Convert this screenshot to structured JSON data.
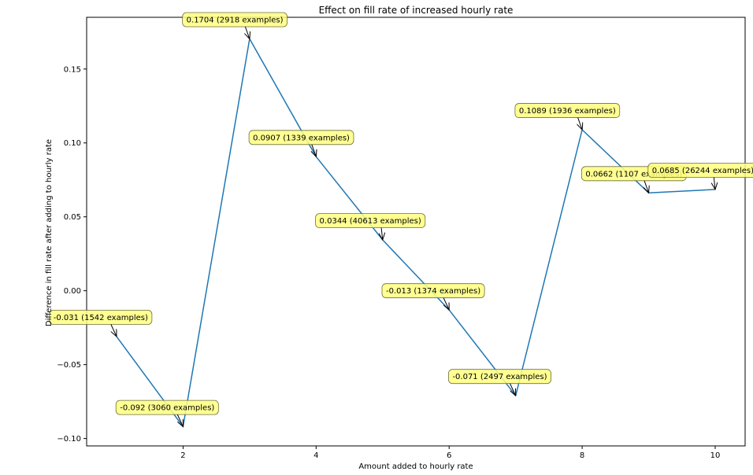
{
  "chart_data": {
    "type": "line",
    "title": "Effect on fill rate of increased hourly rate",
    "xlabel": "Amount added to hourly rate",
    "ylabel": "Difference in fill rate after adding to hourly rate",
    "xlim": [
      0.55,
      10.45
    ],
    "ylim": [
      -0.105,
      0.185
    ],
    "xticks": [
      2,
      4,
      6,
      8,
      10
    ],
    "yticks": [
      -0.1,
      -0.05,
      0.0,
      0.05,
      0.1,
      0.15
    ],
    "ytick_labels": [
      "−0.10",
      "−0.05",
      "0.00",
      "0.05",
      "0.10",
      "0.15"
    ],
    "line_color": "#1f77b4",
    "annotation_face": "#ffff7f",
    "grid": false,
    "x": [
      1,
      2,
      3,
      4,
      5,
      6,
      7,
      8,
      9,
      10
    ],
    "y": [
      -0.031,
      -0.092,
      0.1704,
      0.0907,
      0.0344,
      -0.013,
      -0.071,
      0.1089,
      0.0662,
      0.0685
    ],
    "annotations": [
      {
        "text": "-0.031 (1542 examples)",
        "x": 1,
        "y": -0.031,
        "text_x": 0.05,
        "text_y": -0.018
      },
      {
        "text": "-0.092 (3060 examples)",
        "x": 2,
        "y": -0.092,
        "text_x": 1.05,
        "text_y": -0.079
      },
      {
        "text": "0.1704 (2918 examples)",
        "x": 3,
        "y": 0.1704,
        "text_x": 2.05,
        "text_y": 0.1834
      },
      {
        "text": "0.0907 (1339 examples)",
        "x": 4,
        "y": 0.0907,
        "text_x": 3.05,
        "text_y": 0.1037
      },
      {
        "text": "0.0344 (40613 examples)",
        "x": 5,
        "y": 0.0344,
        "text_x": 4.05,
        "text_y": 0.0474
      },
      {
        "text": "-0.013 (1374 examples)",
        "x": 6,
        "y": -0.013,
        "text_x": 5.05,
        "text_y": 0.0
      },
      {
        "text": "-0.071 (2497 examples)",
        "x": 7,
        "y": -0.071,
        "text_x": 6.05,
        "text_y": -0.058
      },
      {
        "text": "0.1089 (1936 examples)",
        "x": 8,
        "y": 0.1089,
        "text_x": 7.05,
        "text_y": 0.1219
      },
      {
        "text": "0.0662 (1107 examples)",
        "x": 9,
        "y": 0.0662,
        "text_x": 8.05,
        "text_y": 0.0792
      },
      {
        "text": "0.0685 (26244 examples)",
        "x": 10,
        "y": 0.0685,
        "text_x": 9.05,
        "text_y": 0.0815
      }
    ]
  }
}
